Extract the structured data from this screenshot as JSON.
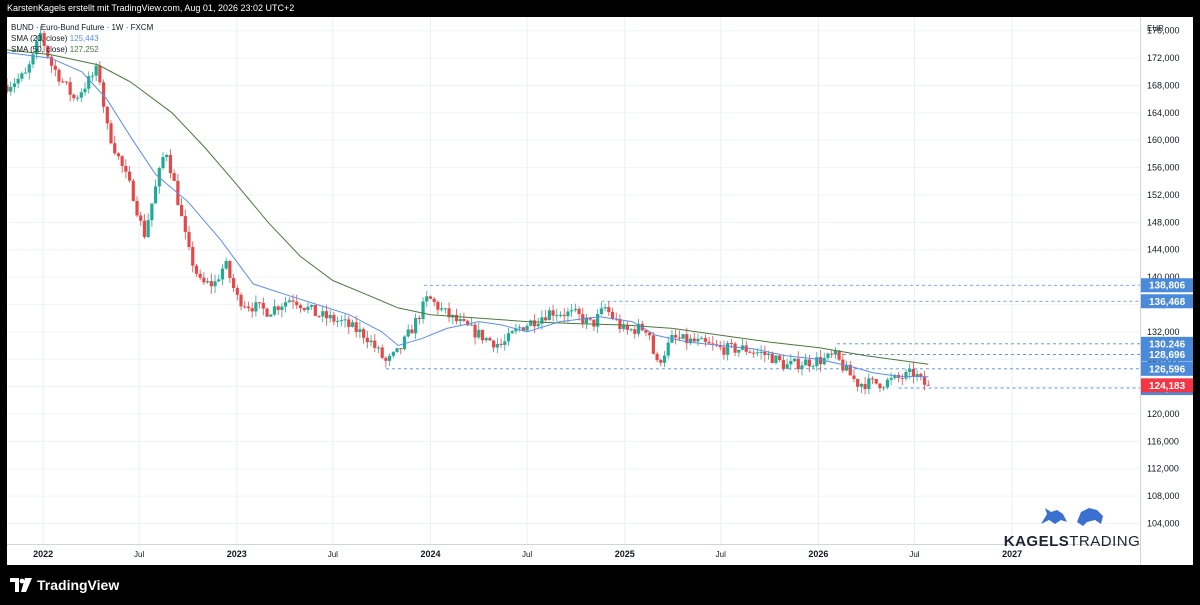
{
  "header": {
    "author_line": "KarstenKagels erstellt mit TradingView.com, Aug 01, 2026 23:02 UTC+2"
  },
  "legend": {
    "title": "BUND · Euro-Bund Future · 1W · FXCM",
    "sma20_label": "SMA (20, close)",
    "sma20_value": "125,443",
    "sma50_label": "SMA (50, close)",
    "sma50_value": "127,252"
  },
  "branding": {
    "watermark_bold": "KAGELS",
    "watermark_light": "TRADING",
    "footer_logo": "TradingView"
  },
  "colors": {
    "up": "#22ab94",
    "down": "#e54848",
    "sma20": "#5b8def",
    "sma50": "#4a7a3a",
    "level_line": "#4a8ad8",
    "level_tag": "#4a8ad8",
    "last_price_tag": "#f23645"
  },
  "chart_data": {
    "type": "candlestick",
    "symbol": "BUND",
    "currency": "EUR",
    "y_range": [
      101,
      178
    ],
    "y_ticks": [
      104,
      108,
      112,
      116,
      120,
      124,
      128,
      132,
      136,
      140,
      144,
      148,
      152,
      156,
      160,
      164,
      168,
      172,
      176
    ],
    "y_tick_labels": [
      "104,000",
      "108,000",
      "112,000",
      "116,000",
      "120,000",
      "124,000",
      "128,000",
      "132,000",
      "136,000",
      "140,000",
      "144,000",
      "148,000",
      "152,000",
      "156,000",
      "160,000",
      "164,000",
      "168,000",
      "172,000",
      "176,000"
    ],
    "x_range": [
      "2021-10-25",
      "2027-08-30"
    ],
    "x_ticks": [
      {
        "date": "2022-01-01",
        "label": "2022",
        "major": true
      },
      {
        "date": "2022-07-01",
        "label": "Jul",
        "major": false
      },
      {
        "date": "2023-01-01",
        "label": "2023",
        "major": true
      },
      {
        "date": "2023-07-01",
        "label": "Jul",
        "major": false
      },
      {
        "date": "2024-01-01",
        "label": "2024",
        "major": true
      },
      {
        "date": "2024-07-01",
        "label": "Jul",
        "major": false
      },
      {
        "date": "2025-01-01",
        "label": "2025",
        "major": true
      },
      {
        "date": "2025-07-01",
        "label": "Jul",
        "major": false
      },
      {
        "date": "2026-01-01",
        "label": "2026",
        "major": true
      },
      {
        "date": "2026-07-01",
        "label": "Jul",
        "major": false
      },
      {
        "date": "2027-01-01",
        "label": "2027",
        "major": true
      }
    ],
    "close_path": [
      [
        "2021-10-25",
        168
      ],
      [
        "2021-11-29",
        169.5
      ],
      [
        "2021-12-13",
        172
      ],
      [
        "2021-12-27",
        175.5
      ],
      [
        "2022-01-17",
        171
      ],
      [
        "2022-03-01",
        166
      ],
      [
        "2022-04-15",
        170.5
      ],
      [
        "2022-05-01",
        162
      ],
      [
        "2022-05-20",
        158
      ],
      [
        "2022-06-20",
        152
      ],
      [
        "2022-07-10",
        146
      ],
      [
        "2022-08-01",
        153
      ],
      [
        "2022-08-20",
        159
      ],
      [
        "2022-09-10",
        152
      ],
      [
        "2022-10-01",
        144
      ],
      [
        "2022-10-25",
        139
      ],
      [
        "2022-11-20",
        139
      ],
      [
        "2022-12-10",
        142
      ],
      [
        "2023-01-01",
        137
      ],
      [
        "2023-01-20",
        136
      ],
      [
        "2023-03-01",
        135
      ],
      [
        "2023-04-15",
        137
      ],
      [
        "2023-06-01",
        134.5
      ],
      [
        "2023-07-15",
        133.5
      ],
      [
        "2023-09-01",
        131.5
      ],
      [
        "2023-10-10",
        127.5
      ],
      [
        "2023-11-01",
        129
      ],
      [
        "2023-12-01",
        133
      ],
      [
        "2023-12-27",
        137
      ],
      [
        "2024-02-01",
        134.5
      ],
      [
        "2024-03-01",
        133
      ],
      [
        "2024-04-15",
        131
      ],
      [
        "2024-05-15",
        130
      ],
      [
        "2024-06-15",
        132.5
      ],
      [
        "2024-07-10",
        133.5
      ],
      [
        "2024-08-15",
        135
      ],
      [
        "2024-10-01",
        134.5
      ],
      [
        "2024-11-01",
        133
      ],
      [
        "2024-11-25",
        135.5
      ],
      [
        "2025-01-01",
        132
      ],
      [
        "2025-01-25",
        132.5
      ],
      [
        "2025-02-15",
        132.5
      ],
      [
        "2025-03-01",
        127
      ],
      [
        "2025-04-01",
        131
      ],
      [
        "2025-05-15",
        130.5
      ],
      [
        "2025-07-01",
        129.5
      ],
      [
        "2025-08-15",
        129.5
      ],
      [
        "2025-10-01",
        128.5
      ],
      [
        "2025-11-01",
        127
      ],
      [
        "2025-12-01",
        127.5
      ],
      [
        "2026-01-15",
        128
      ],
      [
        "2026-02-01",
        128.5
      ],
      [
        "2026-02-15",
        127
      ],
      [
        "2026-03-15",
        124.5
      ],
      [
        "2026-05-01",
        124.5
      ],
      [
        "2026-06-15",
        125.5
      ],
      [
        "2026-07-01",
        126
      ],
      [
        "2026-07-15",
        124.5
      ],
      [
        "2026-07-27",
        124.183
      ]
    ],
    "sma20_path": [
      [
        "2021-10-25",
        172.8
      ],
      [
        "2022-01-15",
        172
      ],
      [
        "2022-03-15",
        170
      ],
      [
        "2022-05-01",
        166
      ],
      [
        "2022-06-15",
        160.5
      ],
      [
        "2022-08-01",
        155
      ],
      [
        "2022-10-01",
        151
      ],
      [
        "2022-12-01",
        145.5
      ],
      [
        "2023-02-01",
        139
      ],
      [
        "2023-04-01",
        137.5
      ],
      [
        "2023-06-01",
        136
      ],
      [
        "2023-08-01",
        134.5
      ],
      [
        "2023-10-01",
        132
      ],
      [
        "2023-11-01",
        130
      ],
      [
        "2023-12-15",
        131
      ],
      [
        "2024-02-01",
        132.5
      ],
      [
        "2024-04-01",
        133.5
      ],
      [
        "2024-05-15",
        133
      ],
      [
        "2024-07-01",
        132
      ],
      [
        "2024-09-01",
        133.5
      ],
      [
        "2024-11-15",
        134.2
      ],
      [
        "2025-01-15",
        133.5
      ],
      [
        "2025-03-01",
        131.5
      ],
      [
        "2025-05-01",
        130.5
      ],
      [
        "2025-07-01",
        130
      ],
      [
        "2025-09-01",
        129.5
      ],
      [
        "2025-11-01",
        128.5
      ],
      [
        "2026-01-01",
        128
      ],
      [
        "2026-03-01",
        127
      ],
      [
        "2026-04-15",
        126
      ],
      [
        "2026-06-01",
        125.5
      ],
      [
        "2026-07-27",
        125.443
      ]
    ],
    "sma50_path": [
      [
        "2021-10-25",
        173.2
      ],
      [
        "2022-01-15",
        172.5
      ],
      [
        "2022-04-15",
        171
      ],
      [
        "2022-06-15",
        168.5
      ],
      [
        "2022-09-01",
        164
      ],
      [
        "2022-11-01",
        159
      ],
      [
        "2023-01-01",
        153.5
      ],
      [
        "2023-03-01",
        148
      ],
      [
        "2023-05-01",
        143
      ],
      [
        "2023-07-01",
        139.5
      ],
      [
        "2023-09-01",
        137.5
      ],
      [
        "2023-11-01",
        135.5
      ],
      [
        "2024-01-01",
        134.5
      ],
      [
        "2024-04-01",
        134
      ],
      [
        "2024-07-01",
        133.5
      ],
      [
        "2024-10-01",
        133.2
      ],
      [
        "2025-01-01",
        133
      ],
      [
        "2025-04-01",
        132.5
      ],
      [
        "2025-07-01",
        131.5
      ],
      [
        "2025-10-01",
        130.5
      ],
      [
        "2026-01-01",
        129.7
      ],
      [
        "2026-04-01",
        128.5
      ],
      [
        "2026-07-27",
        127.252
      ]
    ],
    "levels": [
      {
        "value": 138.806,
        "label": "138,806",
        "start": "2023-12-20"
      },
      {
        "value": 136.468,
        "label": "136,468",
        "start": "2024-11-18"
      },
      {
        "value": 130.246,
        "label": "130,246",
        "start": "2026-02-05"
      },
      {
        "value": 128.696,
        "label": "128,696",
        "start": "2026-02-05"
      },
      {
        "value": 126.596,
        "label": "126,596",
        "start": "2023-10-09"
      },
      {
        "value": 123.782,
        "label": "123,782",
        "start": "2026-06-01"
      }
    ],
    "last_price": {
      "value": 124.183,
      "label": "124,183"
    },
    "range_note": "2021-11 to 2026-07: decline from ~175.5 to ~124.2"
  }
}
